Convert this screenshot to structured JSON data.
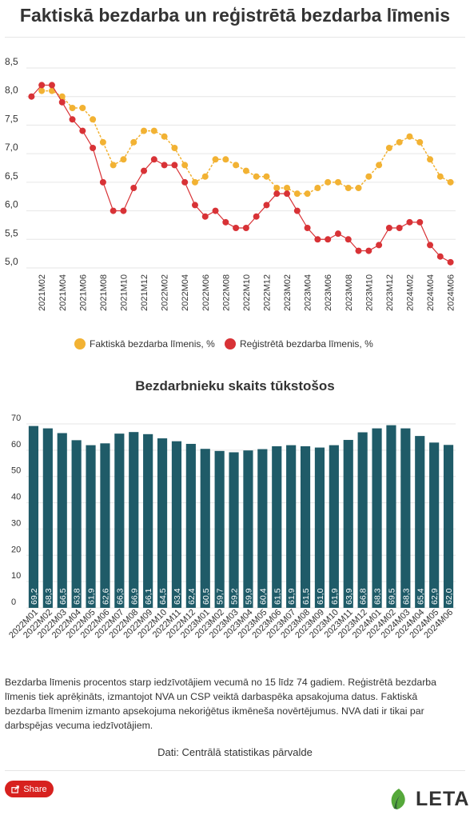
{
  "title": "Faktiskā bezdarba un reģistrētā bezdarba līmenis",
  "chart_data": [
    {
      "type": "line",
      "title": "",
      "xlabel": "",
      "ylabel": "",
      "ylim": [
        5.0,
        8.5
      ],
      "yticks": [
        "5,0",
        "5,5",
        "6,0",
        "6,5",
        "7,0",
        "7,5",
        "8,0",
        "8,5"
      ],
      "x": [
        "2021M01",
        "2021M02",
        "2021M03",
        "2021M04",
        "2021M05",
        "2021M06",
        "2021M07",
        "2021M08",
        "2021M09",
        "2021M10",
        "2021M11",
        "2021M12",
        "2022M01",
        "2022M02",
        "2022M03",
        "2022M04",
        "2022M05",
        "2022M06",
        "2022M07",
        "2022M08",
        "2022M09",
        "2022M10",
        "2022M11",
        "2022M12",
        "2023M01",
        "2023M02",
        "2023M03",
        "2023M04",
        "2023M05",
        "2023M06",
        "2023M07",
        "2023M08",
        "2023M09",
        "2023M10",
        "2023M11",
        "2023M12",
        "2024M01",
        "2024M02",
        "2024M03",
        "2024M04",
        "2024M05",
        "2024M06"
      ],
      "xticks": [
        "2021M02",
        "2021M04",
        "2021M06",
        "2021M08",
        "2021M10",
        "2021M12",
        "2022M02",
        "2022M04",
        "2022M06",
        "2022M08",
        "2022M10",
        "2022M12",
        "2023M02",
        "2023M04",
        "2023M06",
        "2023M08",
        "2023M10",
        "2023M12",
        "2024M02",
        "2024M04",
        "2024M06"
      ],
      "series": [
        {
          "name": "Faktiskā bezdarba līmenis, %",
          "color": "#f2b233",
          "values": [
            null,
            8.1,
            8.1,
            8.0,
            7.8,
            7.8,
            7.6,
            7.2,
            6.8,
            6.9,
            7.2,
            7.4,
            7.4,
            7.3,
            7.1,
            6.8,
            6.5,
            6.6,
            6.9,
            6.9,
            6.8,
            6.7,
            6.6,
            6.6,
            6.4,
            6.4,
            6.3,
            6.3,
            6.4,
            6.5,
            6.5,
            6.4,
            6.4,
            6.6,
            6.8,
            7.1,
            7.2,
            7.3,
            7.2,
            6.9,
            6.6,
            6.5
          ]
        },
        {
          "name": "Reģistrētā bezdarba līmenis, %",
          "color": "#d83236",
          "values": [
            8.0,
            8.2,
            8.2,
            7.9,
            7.6,
            7.4,
            7.1,
            6.5,
            6.0,
            6.0,
            6.4,
            6.7,
            6.9,
            6.8,
            6.8,
            6.5,
            6.1,
            5.9,
            6.0,
            5.8,
            5.7,
            5.7,
            5.9,
            6.1,
            6.3,
            6.3,
            6.0,
            5.7,
            5.5,
            5.5,
            5.6,
            5.5,
            5.3,
            5.3,
            5.4,
            5.7,
            5.7,
            5.8,
            5.8,
            5.4,
            5.2,
            5.1
          ]
        }
      ],
      "legend_position": "bottom"
    },
    {
      "type": "bar",
      "title": "Bezdarbnieku skaits tūkstošos",
      "xlabel": "",
      "ylabel": "",
      "ylim": [
        0,
        70
      ],
      "yticks": [
        "0",
        "10",
        "20",
        "30",
        "40",
        "50",
        "60",
        "70"
      ],
      "color": "#1f5b68",
      "categories": [
        "2022M01",
        "2022M02",
        "2022M03",
        "2022M04",
        "2022M05",
        "2022M06",
        "2022M07",
        "2022M08",
        "2022M09",
        "2022M10",
        "2022M11",
        "2022M12",
        "2023M01",
        "2023M02",
        "2023M03",
        "2023M04",
        "2023M05",
        "2023M06",
        "2023M07",
        "2023M08",
        "2023M09",
        "2023M10",
        "2023M11",
        "2023M12",
        "2024M01",
        "2024M02",
        "2024M03",
        "2024M04",
        "2024M05",
        "2024M06"
      ],
      "values": [
        69.2,
        68.3,
        66.5,
        63.8,
        61.9,
        62.6,
        66.3,
        66.9,
        66.1,
        64.5,
        63.4,
        62.4,
        60.5,
        59.7,
        59.2,
        59.9,
        60.4,
        61.5,
        61.9,
        61.5,
        61.0,
        61.9,
        63.9,
        66.8,
        68.3,
        69.5,
        68.3,
        65.4,
        62.9,
        62.0
      ],
      "value_labels": [
        "69,2",
        "68,3",
        "66,5",
        "63,8",
        "61,9",
        "62,6",
        "66,3",
        "66,9",
        "66,1",
        "64,5",
        "63,4",
        "62,4",
        "60,5",
        "59,7",
        "59,2",
        "59,9",
        "60,4",
        "61,5",
        "61,9",
        "61,5",
        "61,0",
        "61,9",
        "63,9",
        "66,8",
        "68,3",
        "69,5",
        "68,3",
        "65,4",
        "62,9",
        "62,0"
      ]
    }
  ],
  "note": "Bezdarba līmenis procentos starp iedzīvotājiem vecumā no 15 līdz 74 gadiem.  Reģistrētā bezdarba līmenis tiek aprēķināts, izmantojot NVA un CSP veiktā darbaspēka apsakojuma datus. Faktiskā bezdarba līmenim izmanto apsekojuma nekoriģētus ikmēneša novērtējumus. NVA dati ir tikai par darbspējas vecuma iedzīvotājiem.",
  "source": "Dati: Centrālā statistikas pārvalde",
  "share_label": "Share",
  "logo_text": "LETA",
  "icons": {
    "share": "share-icon",
    "logo": "leta-leaf-icon"
  },
  "colors": {
    "share_button": "#d7211f",
    "logo_green": "#55a83a",
    "logo_dark": "#2d6b2c"
  }
}
